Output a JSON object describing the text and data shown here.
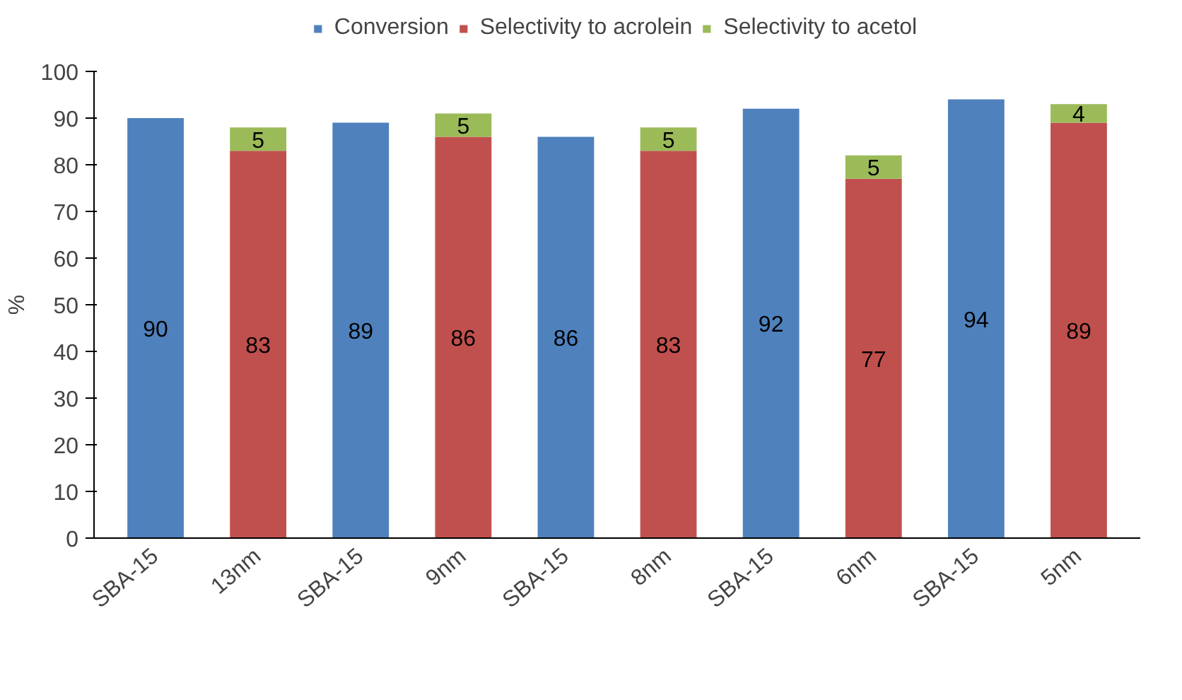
{
  "chart_data": {
    "type": "bar",
    "stacked": true,
    "ylabel": "%",
    "categories": [
      "SBA-15",
      "13nm",
      "SBA-15",
      "9nm",
      "SBA-15",
      "8nm",
      "SBA-15",
      "6nm",
      "SBA-15",
      "5nm"
    ],
    "series": [
      {
        "name": "Conversion",
        "color": "#4f81bd",
        "values": [
          90,
          null,
          89,
          null,
          86,
          null,
          92,
          null,
          94,
          null
        ]
      },
      {
        "name": "Selectivity to acrolein",
        "color": "#c0504d",
        "values": [
          null,
          83,
          null,
          86,
          null,
          83,
          null,
          77,
          null,
          89
        ]
      },
      {
        "name": "Selectivity to acetol",
        "color": "#9bbb59",
        "values": [
          null,
          5,
          null,
          5,
          null,
          5,
          null,
          5,
          null,
          4
        ]
      }
    ],
    "ylim": [
      0,
      100
    ],
    "yticks": [
      0,
      10,
      20,
      30,
      40,
      50,
      60,
      70,
      80,
      90,
      100
    ],
    "grid": false,
    "legend": "top",
    "data_labels": true
  }
}
